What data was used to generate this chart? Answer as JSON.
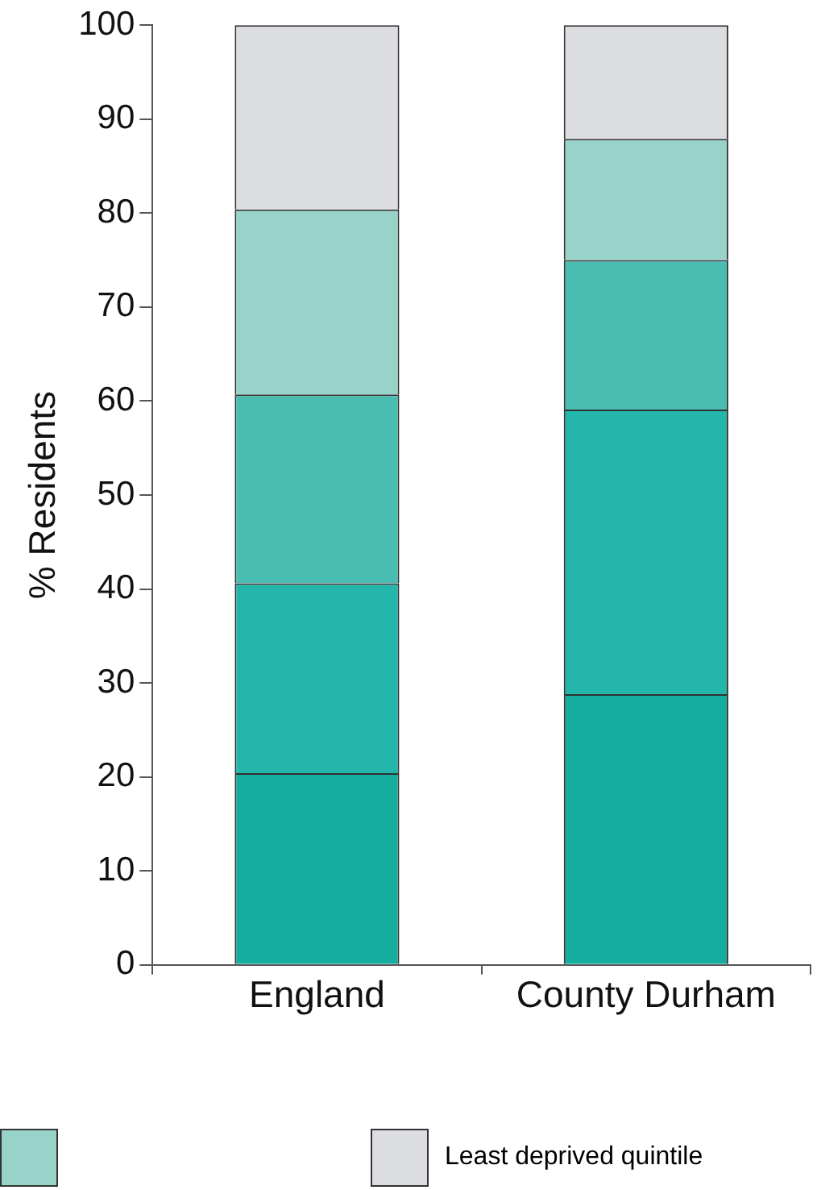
{
  "chart_data": {
    "type": "bar",
    "stacked": true,
    "ylabel": "% Residents",
    "categories": [
      "England",
      "County Durham"
    ],
    "ylim": [
      0,
      100
    ],
    "yticks": [
      0,
      10,
      20,
      30,
      40,
      50,
      60,
      70,
      80,
      90,
      100
    ],
    "grid": false,
    "legend": "bottom",
    "series": [
      {
        "color": "#14ad9e",
        "values": [
          20.4,
          28.8
        ]
      },
      {
        "color": "#24b6aa",
        "values": [
          20.2,
          30.3
        ]
      },
      {
        "color": "#4abdb2",
        "values": [
          20.1,
          15.9
        ]
      },
      {
        "color": "#98d3ca",
        "values": [
          19.7,
          12.9
        ]
      },
      {
        "name": "Least deprived quintile",
        "color": "#dcdde1",
        "values": [
          19.6,
          12.1
        ]
      }
    ]
  }
}
